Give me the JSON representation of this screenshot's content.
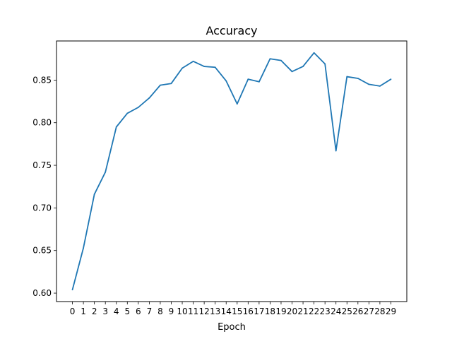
{
  "chart_data": {
    "type": "line",
    "title": "Accuracy",
    "xlabel": "Epoch",
    "ylabel": "",
    "x": [
      0,
      1,
      2,
      3,
      4,
      5,
      6,
      7,
      8,
      9,
      10,
      11,
      12,
      13,
      14,
      15,
      16,
      17,
      18,
      19,
      20,
      21,
      22,
      23,
      24,
      25,
      26,
      27,
      28,
      29
    ],
    "series": [
      {
        "values": [
          0.604,
          0.653,
          0.716,
          0.742,
          0.795,
          0.811,
          0.818,
          0.829,
          0.844,
          0.846,
          0.864,
          0.872,
          0.866,
          0.865,
          0.849,
          0.822,
          0.851,
          0.848,
          0.875,
          0.873,
          0.86,
          0.866,
          0.882,
          0.869,
          0.767,
          0.854,
          0.852,
          0.845,
          0.843,
          0.851
        ],
        "color": "#1f77b4"
      }
    ],
    "x_ticks": [
      "0",
      "1",
      "2",
      "3",
      "4",
      "5",
      "6",
      "7",
      "8",
      "9",
      "10",
      "11",
      "12",
      "13",
      "14",
      "15",
      "16",
      "17",
      "18",
      "19",
      "20",
      "21",
      "22",
      "23",
      "24",
      "25",
      "26",
      "27",
      "28",
      "29"
    ],
    "y_ticks": [
      "0.60",
      "0.65",
      "0.70",
      "0.75",
      "0.80",
      "0.85"
    ],
    "y_tick_values": [
      0.6,
      0.65,
      0.7,
      0.75,
      0.8,
      0.85
    ],
    "xlim": [
      -1.45,
      30.45
    ],
    "ylim": [
      0.5901,
      0.8959
    ],
    "grid": false,
    "legend": "none"
  }
}
